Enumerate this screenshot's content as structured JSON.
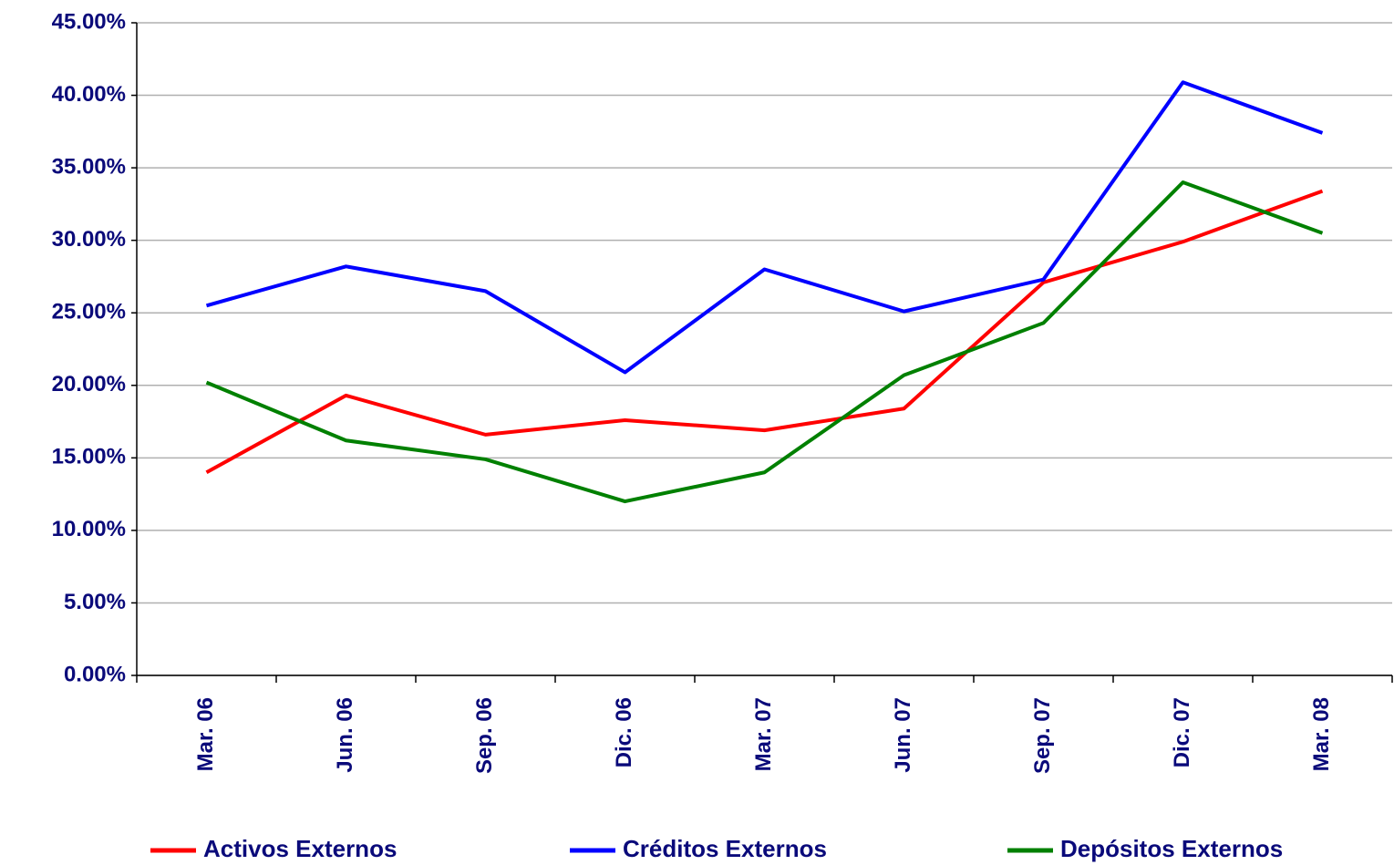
{
  "chart_data": {
    "type": "line",
    "categories": [
      "Mar. 06",
      "Jun. 06",
      "Sep. 06",
      "Dic. 06",
      "Mar. 07",
      "Jun. 07",
      "Sep. 07",
      "Dic. 07",
      "Mar. 08"
    ],
    "series": [
      {
        "name": "Activos Externos",
        "color": "#ff0000",
        "values": [
          14.0,
          19.3,
          16.6,
          17.6,
          16.9,
          18.4,
          27.1,
          29.9,
          33.4
        ]
      },
      {
        "name": "Créditos Externos",
        "color": "#0000ff",
        "values": [
          25.5,
          28.2,
          26.5,
          20.9,
          28.0,
          25.1,
          27.3,
          40.9,
          37.4
        ]
      },
      {
        "name": "Depósitos Externos",
        "color": "#008000",
        "values": [
          20.2,
          16.2,
          14.9,
          12.0,
          14.0,
          20.7,
          24.3,
          34.0,
          30.5
        ]
      }
    ],
    "ylim": [
      0,
      45
    ],
    "yticks": [
      {
        "value": 0,
        "label": "0.00%"
      },
      {
        "value": 5,
        "label": "5.00%"
      },
      {
        "value": 10,
        "label": "10.00%"
      },
      {
        "value": 15,
        "label": "15.00%"
      },
      {
        "value": 20,
        "label": "20.00%"
      },
      {
        "value": 25,
        "label": "25.00%"
      },
      {
        "value": 30,
        "label": "30.00%"
      },
      {
        "value": 35,
        "label": "35.00%"
      },
      {
        "value": 40,
        "label": "40.00%"
      },
      {
        "value": 45,
        "label": "45.00%"
      }
    ],
    "grid": true,
    "legend": "bottom"
  }
}
